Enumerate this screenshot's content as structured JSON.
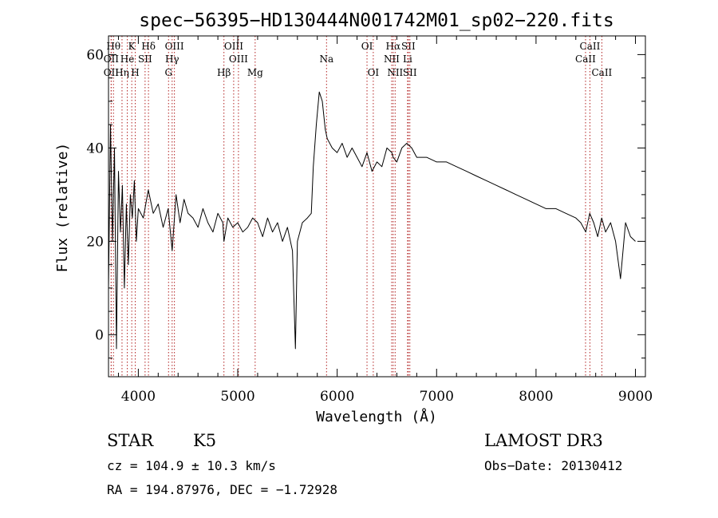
{
  "chart_data": {
    "type": "line",
    "title": "spec−56395−HD130444N001742M01_sp02−220.fits",
    "xlabel": "Wavelength (Å)",
    "ylabel": "Flux (relative)",
    "xlim": [
      3700,
      9100
    ],
    "ylim": [
      -9,
      64
    ],
    "x_ticks": [
      4000,
      5000,
      6000,
      7000,
      8000,
      9000
    ],
    "y_ticks": [
      0,
      20,
      40,
      60
    ],
    "series": [
      {
        "name": "flux",
        "color": "#000000",
        "x": [
          3700,
          3720,
          3740,
          3760,
          3780,
          3800,
          3820,
          3840,
          3860,
          3880,
          3900,
          3920,
          3940,
          3960,
          3980,
          4000,
          4050,
          4100,
          4150,
          4200,
          4250,
          4300,
          4340,
          4380,
          4420,
          4460,
          4500,
          4550,
          4600,
          4650,
          4700,
          4750,
          4800,
          4850,
          4861,
          4900,
          4950,
          5000,
          5050,
          5100,
          5150,
          5200,
          5250,
          5300,
          5350,
          5400,
          5450,
          5500,
          5550,
          5580,
          5600,
          5650,
          5700,
          5740,
          5760,
          5790,
          5820,
          5850,
          5880,
          5900,
          5950,
          6000,
          6050,
          6100,
          6150,
          6200,
          6250,
          6300,
          6350,
          6400,
          6450,
          6500,
          6550,
          6563,
          6600,
          6650,
          6700,
          6750,
          6800,
          6900,
          7000,
          7100,
          7200,
          7300,
          7400,
          7500,
          7600,
          7700,
          7800,
          7900,
          8000,
          8100,
          8200,
          8300,
          8400,
          8450,
          8500,
          8540,
          8580,
          8620,
          8660,
          8700,
          8750,
          8800,
          8850,
          8900,
          8950,
          9000
        ],
        "y": [
          10,
          45,
          20,
          40,
          -3,
          35,
          22,
          32,
          10,
          28,
          15,
          30,
          25,
          33,
          20,
          27,
          25,
          31,
          26,
          28,
          23,
          27,
          18,
          30,
          24,
          29,
          26,
          25,
          23,
          27,
          24,
          22,
          26,
          24,
          20,
          25,
          23,
          24,
          22,
          23,
          25,
          24,
          21,
          25,
          22,
          24,
          20,
          23,
          18,
          -3,
          20,
          24,
          25,
          26,
          36,
          45,
          52,
          50,
          44,
          42,
          40,
          39,
          41,
          38,
          40,
          38,
          36,
          39,
          35,
          37,
          36,
          40,
          39,
          38,
          37,
          40,
          41,
          40,
          38,
          38,
          37,
          37,
          36,
          35,
          34,
          33,
          32,
          31,
          30,
          29,
          28,
          27,
          27,
          26,
          25,
          24,
          22,
          26,
          24,
          21,
          25,
          22,
          24,
          20,
          12,
          24,
          21,
          20
        ]
      }
    ],
    "line_markers": [
      {
        "label": "Hθ",
        "x": 3750,
        "row": 1
      },
      {
        "label": "OII",
        "x": 3727,
        "row": 2
      },
      {
        "label": "OII",
        "x": 3727,
        "row": 3
      },
      {
        "label": "Hη",
        "x": 3836,
        "row": 3
      },
      {
        "label": "K",
        "x": 3934,
        "row": 1
      },
      {
        "label": "He",
        "x": 3889,
        "row": 2
      },
      {
        "label": "SII",
        "x": 4068,
        "row": 2
      },
      {
        "label": "H",
        "x": 3969,
        "row": 3
      },
      {
        "label": "Hδ",
        "x": 4102,
        "row": 1
      },
      {
        "label": "OIII",
        "x": 4363,
        "row": 1
      },
      {
        "label": "Hγ",
        "x": 4340,
        "row": 2
      },
      {
        "label": "G",
        "x": 4304,
        "row": 3
      },
      {
        "label": "OIII",
        "x": 4959,
        "row": 1
      },
      {
        "label": "OIII",
        "x": 5007,
        "row": 2
      },
      {
        "label": "Hβ",
        "x": 4861,
        "row": 3
      },
      {
        "label": "Mg",
        "x": 5175,
        "row": 3
      },
      {
        "label": "Na",
        "x": 5893,
        "row": 2
      },
      {
        "label": "OI",
        "x": 6300,
        "row": 1
      },
      {
        "label": "OI",
        "x": 6363,
        "row": 3
      },
      {
        "label": "Hα",
        "x": 6563,
        "row": 1
      },
      {
        "label": "SII",
        "x": 6716,
        "row": 1
      },
      {
        "label": "NII",
        "x": 6548,
        "row": 2
      },
      {
        "label": "Li",
        "x": 6708,
        "row": 2
      },
      {
        "label": "NII",
        "x": 6583,
        "row": 3
      },
      {
        "label": "SII",
        "x": 6731,
        "row": 3
      },
      {
        "label": "CaII",
        "x": 8542,
        "row": 1
      },
      {
        "label": "CaII",
        "x": 8498,
        "row": 2
      },
      {
        "label": "CaII",
        "x": 8662,
        "row": 3
      }
    ],
    "marker_color": "#b22222"
  },
  "info": {
    "object_class": "STAR",
    "subclass": "K5",
    "survey": "LAMOST DR3",
    "redshift": "cz = 104.9 ± 10.3 km/s",
    "obs_date": "Obs−Date: 20130412",
    "coords": "RA = 194.87976, DEC =  −1.72928"
  }
}
